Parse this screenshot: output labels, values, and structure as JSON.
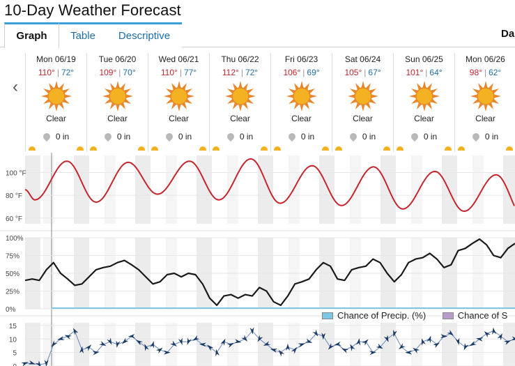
{
  "page": {
    "title": "10-Day Weather Forecast"
  },
  "tabs": [
    {
      "label": "Graph",
      "active": true
    },
    {
      "label": "Table",
      "active": false
    },
    {
      "label": "Descriptive",
      "active": false
    }
  ],
  "tab_right_label": "Da",
  "days": [
    {
      "date": "Mon 06/19",
      "hi": "110°",
      "lo": "72°",
      "condition": "Clear",
      "precip": "0 in"
    },
    {
      "date": "Tue 06/20",
      "hi": "109°",
      "lo": "70°",
      "condition": "Clear",
      "precip": "0 in"
    },
    {
      "date": "Wed 06/21",
      "hi": "110°",
      "lo": "77°",
      "condition": "Clear",
      "precip": "0 in"
    },
    {
      "date": "Thu 06/22",
      "hi": "112°",
      "lo": "72°",
      "condition": "Clear",
      "precip": "0 in"
    },
    {
      "date": "Fri 06/23",
      "hi": "106°",
      "lo": "69°",
      "condition": "Clear",
      "precip": "0 in"
    },
    {
      "date": "Sat 06/24",
      "hi": "105°",
      "lo": "67°",
      "condition": "Clear",
      "precip": "0 in"
    },
    {
      "date": "Sun 06/25",
      "hi": "101°",
      "lo": "64°",
      "condition": "Clear",
      "precip": "0 in"
    },
    {
      "date": "Mon 06/26",
      "hi": "98°",
      "lo": "62°",
      "condition": "Clear",
      "precip": "0 in"
    }
  ],
  "colors": {
    "temperature": "#c4262e",
    "cloud_cover": "#1a1a1a",
    "precip": "#7cc7e8",
    "snow": "#b89ccc",
    "wind": "#1a3a66",
    "sun": "#f4b223",
    "sun_rays": "#e8862a",
    "night_band": "#ececec"
  },
  "legend": [
    {
      "label": "Chance of Precip. (%)",
      "color": "#7cc7e8"
    },
    {
      "label": "Chance of S",
      "color": "#b89ccc"
    }
  ],
  "chart_data": [
    {
      "type": "line",
      "name": "temperature",
      "ylabel_ticks": [
        "100 °F",
        "80 °F",
        "60 °F"
      ],
      "tick_values": [
        100,
        80,
        60
      ],
      "ylim": [
        55,
        115
      ],
      "daily_hi": [
        110,
        109,
        110,
        112,
        106,
        105,
        101,
        98
      ],
      "daily_lo": [
        72,
        70,
        77,
        72,
        69,
        67,
        64,
        62
      ],
      "start_value": 85
    },
    {
      "type": "line",
      "name": "cloud cover",
      "ylabel_ticks": [
        "100%",
        "75%",
        "50%",
        "25%",
        "0%"
      ],
      "tick_values": [
        100,
        75,
        50,
        25,
        0
      ],
      "ylim": [
        0,
        100
      ],
      "values": [
        40,
        42,
        40,
        55,
        65,
        50,
        42,
        33,
        35,
        45,
        55,
        58,
        60,
        65,
        68,
        62,
        55,
        45,
        35,
        38,
        48,
        50,
        45,
        50,
        48,
        35,
        15,
        5,
        18,
        20,
        15,
        20,
        18,
        30,
        25,
        10,
        5,
        18,
        35,
        38,
        42,
        55,
        65,
        60,
        42,
        40,
        55,
        58,
        60,
        70,
        65,
        50,
        38,
        48,
        65,
        70,
        72,
        78,
        70,
        58,
        62,
        82,
        85,
        92,
        98,
        90,
        75,
        72,
        85,
        92
      ]
    },
    {
      "type": "line",
      "name": "chance of precip",
      "values_percent": 0
    },
    {
      "type": "line",
      "name": "wind speed",
      "ylabel_ticks": [
        "15",
        "10",
        "5",
        "0"
      ],
      "tick_values": [
        15,
        10,
        5,
        0
      ],
      "ylim": [
        0,
        16
      ],
      "values": [
        1,
        1,
        0.5,
        1,
        8,
        10,
        11,
        13,
        6,
        7,
        5,
        8,
        9,
        8,
        9,
        11,
        9,
        7,
        8,
        6,
        5,
        8,
        9,
        9,
        10,
        8,
        7,
        5,
        9,
        8,
        9,
        10,
        13,
        10,
        8,
        6,
        5,
        7,
        6,
        8,
        9,
        12,
        11,
        7,
        8,
        6,
        7,
        9,
        9,
        5,
        7,
        10,
        12,
        7,
        5,
        6,
        9,
        10,
        8,
        11,
        12,
        9,
        7,
        8,
        10,
        12,
        13,
        11,
        9,
        10
      ]
    }
  ]
}
